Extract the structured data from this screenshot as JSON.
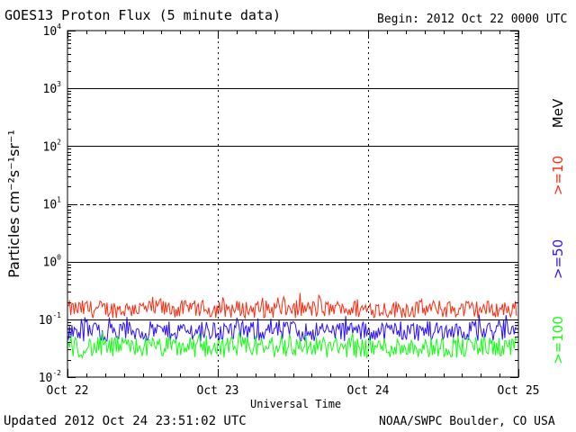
{
  "header": {
    "title": "GOES13 Proton Flux (5 minute data)",
    "begin": "Begin: 2012 Oct 22 0000 UTC"
  },
  "footer": {
    "updated": "Updated 2012 Oct 24 23:51:02 UTC",
    "credit": "NOAA/SWPC Boulder, CO USA"
  },
  "colors": {
    "ge10": "#ff2a10",
    "ge50": "#2a10ff",
    "ge100": "#10ff10",
    "axis": "#000000"
  },
  "chart_data": {
    "type": "line",
    "title": "GOES13 Proton Flux (5 minute data)",
    "xlabel": "Universal Time",
    "ylabel": "Particles cm⁻²s⁻¹sr⁻¹",
    "yscale": "log",
    "ylim": [
      0.01,
      10000
    ],
    "x_ticks": [
      "Oct 22",
      "Oct 23",
      "Oct 24",
      "Oct 25"
    ],
    "y_ticks": [
      {
        "base": "10",
        "exp": "4",
        "value": 10000
      },
      {
        "base": "10",
        "exp": "3",
        "value": 1000
      },
      {
        "base": "10",
        "exp": "2",
        "value": 100
      },
      {
        "base": "10",
        "exp": "1",
        "value": 10
      },
      {
        "base": "10",
        "exp": "0",
        "value": 1
      },
      {
        "base": "10",
        "exp": "-1",
        "value": 0.1
      },
      {
        "base": "10",
        "exp": "-2",
        "value": 0.01
      }
    ],
    "thresholds": [
      {
        "value": 1000,
        "style": "solid"
      },
      {
        "value": 100,
        "style": "solid"
      },
      {
        "value": 10,
        "style": "dashed"
      },
      {
        "value": 1,
        "style": "solid"
      },
      {
        "value": 0.1,
        "style": "solid"
      }
    ],
    "legend_unit": "MeV",
    "legend_placement": "right",
    "series": [
      {
        "name": ">=10",
        "color": "#ff2a10",
        "typical_range": [
          0.09,
          0.25
        ]
      },
      {
        "name": ">=50",
        "color": "#2a10ff",
        "typical_range": [
          0.035,
          0.11
        ]
      },
      {
        "name": ">=100",
        "color": "#10ff10",
        "typical_range": [
          0.018,
          0.06
        ]
      }
    ]
  }
}
